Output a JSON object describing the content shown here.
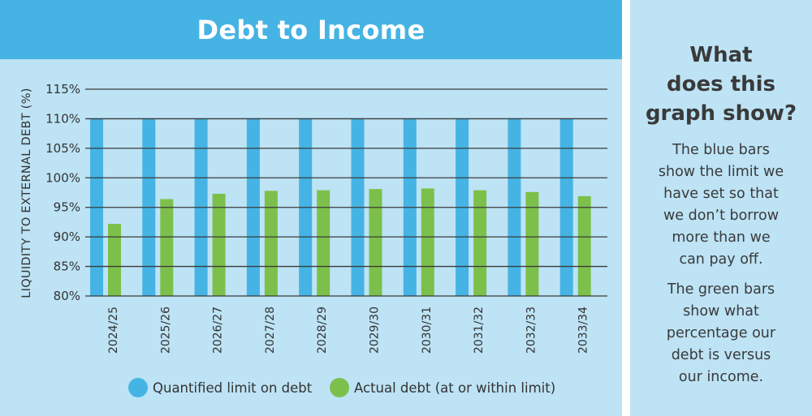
{
  "chart_data": {
    "type": "bar",
    "title": "Debt to Income",
    "xlabel": "",
    "ylabel": "LIQUIDITY TO EXTERNAL DEBT (%)",
    "ylim": [
      80,
      115
    ],
    "yticks": [
      "115%",
      "110%",
      "105%",
      "100%",
      "95%",
      "90%",
      "85%",
      "80%"
    ],
    "ytick_values": [
      115,
      110,
      105,
      100,
      95,
      90,
      85,
      80
    ],
    "grid": true,
    "legend_position": "bottom",
    "categories": [
      "2024/25",
      "2025/26",
      "2026/27",
      "2027/28",
      "2028/29",
      "2029/30",
      "2030/31",
      "2031/32",
      "2032/33",
      "2033/34"
    ],
    "series": [
      {
        "name": "Quantified limit on debt",
        "color": "#45b4e4",
        "values": [
          110,
          110,
          110,
          110,
          110,
          110,
          110,
          110,
          110,
          110
        ]
      },
      {
        "name": "Actual debt (at or within limit)",
        "color": "#7cc04b",
        "values": [
          92.2,
          96.4,
          97.3,
          97.8,
          97.9,
          98.1,
          98.2,
          97.9,
          97.6,
          96.9
        ]
      }
    ]
  },
  "side_panel": {
    "heading_lines": [
      "What",
      "does this",
      "graph show?"
    ],
    "para1_lines": [
      "The blue bars",
      "show the limit we",
      "have set so that",
      "we don’t borrow",
      "more than we",
      "can pay off."
    ],
    "para2_lines": [
      "The green bars",
      "show what",
      "percentage our",
      "debt is versus",
      "our income."
    ]
  },
  "colors": {
    "header_bg": "#45b4e4",
    "panel_bg": "#bde3f5",
    "gridline": "#3a3a3a"
  }
}
